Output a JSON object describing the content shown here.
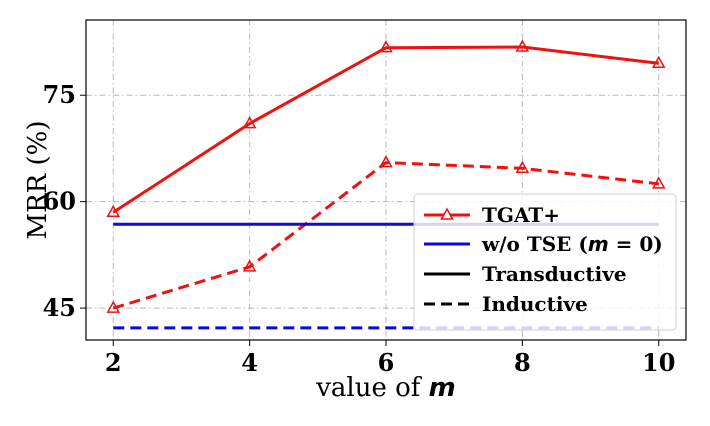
{
  "chart_data": {
    "type": "line",
    "xlabel_prefix": "value of ",
    "xlabel_var": "m",
    "ylabel": "MRR (%)",
    "x": [
      2,
      4,
      6,
      8,
      10
    ],
    "x_tick_labels": [
      "2",
      "4",
      "6",
      "8",
      "10"
    ],
    "y_ticks": [
      45,
      60,
      75
    ],
    "y_tick_labels": [
      "45",
      "60",
      "75"
    ],
    "xlim": [
      1.6,
      10.4
    ],
    "ylim": [
      40.5,
      85.6
    ],
    "grid": true,
    "legend_position": "lower-right",
    "series": [
      {
        "name": "TGAT+ Transductive",
        "color": "#ee1111",
        "style": "solid",
        "marker": "triangle",
        "values": [
          58.5,
          71.0,
          81.7,
          81.8,
          79.5
        ]
      },
      {
        "name": "TGAT+ Inductive",
        "color": "#ee1111",
        "style": "dashed",
        "marker": "triangle",
        "values": [
          45.0,
          50.8,
          65.5,
          64.7,
          62.5
        ]
      },
      {
        "name": "w/o TSE (m = 0) Transductive",
        "color": "#0a0ae0",
        "style": "solid",
        "marker": "none",
        "values": [
          56.8,
          56.8,
          56.8,
          56.8,
          56.8
        ]
      },
      {
        "name": "w/o TSE (m = 0) Inductive",
        "color": "#0a0ae0",
        "style": "dashed",
        "marker": "none",
        "values": [
          42.2,
          42.2,
          42.2,
          42.2,
          42.2
        ]
      }
    ],
    "legend": {
      "tgat": "TGAT+",
      "wo_prefix": "w/o TSE (",
      "wo_var": "m",
      "wo_suffix": " = 0)",
      "transductive": "Transductive",
      "inductive": "Inductive"
    }
  }
}
